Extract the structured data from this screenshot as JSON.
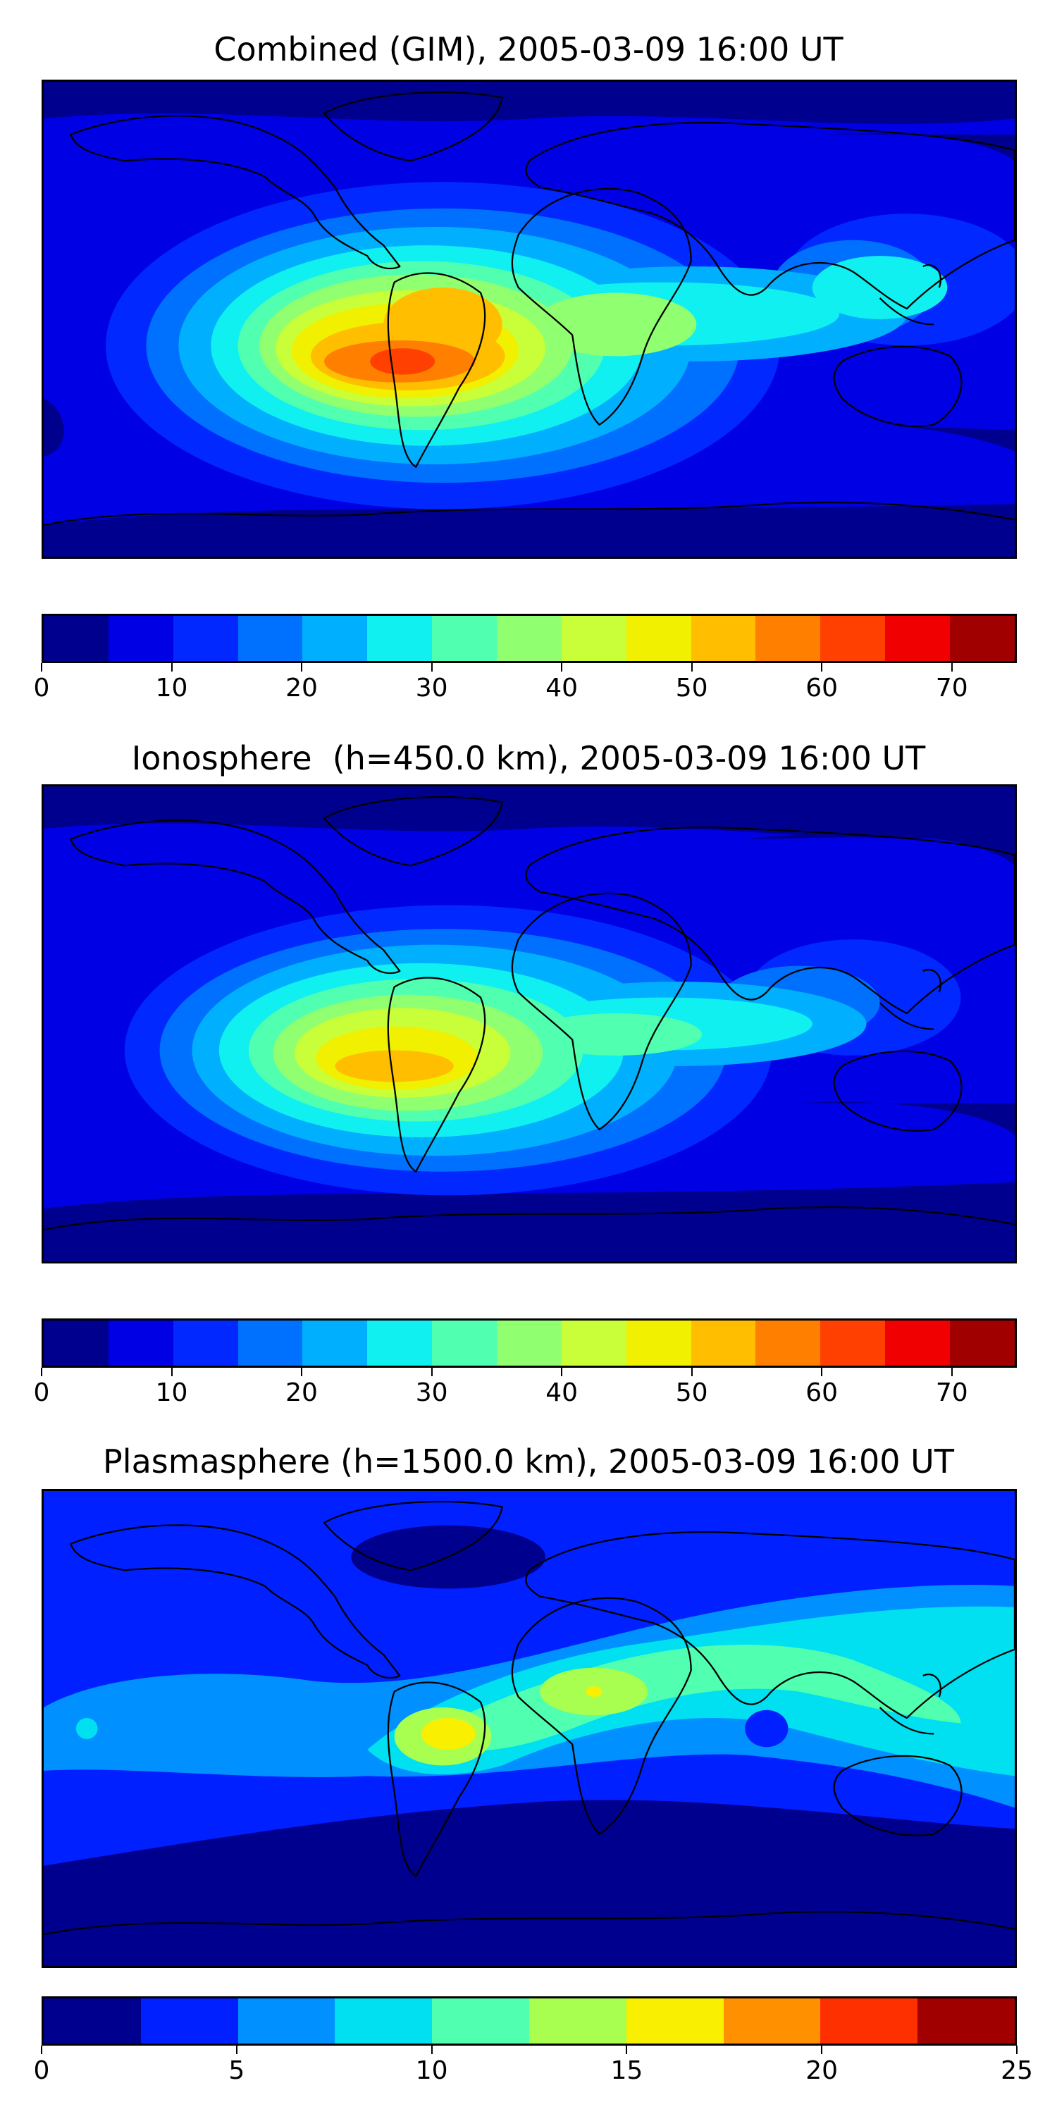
{
  "panels": [
    {
      "title": "Combined (GIM), 2005-03-09 16:00 UT",
      "colorbar": {
        "min": 0,
        "max": 75,
        "step": 5,
        "colors": [
          "#00008f",
          "#0000e5",
          "#0028ff",
          "#0070ff",
          "#00b0ff",
          "#10f0f0",
          "#50ffb0",
          "#90ff70",
          "#c8ff38",
          "#f0f000",
          "#ffbf00",
          "#ff8000",
          "#ff4000",
          "#f00000",
          "#a00000"
        ],
        "ticks": [
          "0",
          "10",
          "20",
          "30",
          "40",
          "50",
          "60",
          "70"
        ],
        "tick_values": [
          0,
          10,
          20,
          30,
          40,
          50,
          60,
          70
        ]
      }
    },
    {
      "title": "Ionosphere  (h=450.0 km), 2005-03-09 16:00 UT",
      "colorbar": {
        "min": 0,
        "max": 75,
        "step": 5,
        "colors": [
          "#00008f",
          "#0000e5",
          "#0028ff",
          "#0070ff",
          "#00b0ff",
          "#10f0f0",
          "#50ffb0",
          "#90ff70",
          "#c8ff38",
          "#f0f000",
          "#ffbf00",
          "#ff8000",
          "#ff4000",
          "#f00000",
          "#a00000"
        ],
        "ticks": [
          "0",
          "10",
          "20",
          "30",
          "40",
          "50",
          "60",
          "70"
        ],
        "tick_values": [
          0,
          10,
          20,
          30,
          40,
          50,
          60,
          70
        ]
      }
    },
    {
      "title": "Plasmasphere (h=1500.0 km), 2005-03-09 16:00 UT",
      "colorbar": {
        "min": 0,
        "max": 25,
        "step": 2.5,
        "colors": [
          "#00008f",
          "#0020ff",
          "#0090ff",
          "#00e0f0",
          "#50ffb0",
          "#a8ff50",
          "#f8f000",
          "#ff9000",
          "#ff3000",
          "#a00000"
        ],
        "ticks": [
          "0",
          "5",
          "10",
          "15",
          "20",
          "25"
        ],
        "tick_values": [
          0,
          5,
          10,
          15,
          20,
          25
        ]
      }
    }
  ]
}
